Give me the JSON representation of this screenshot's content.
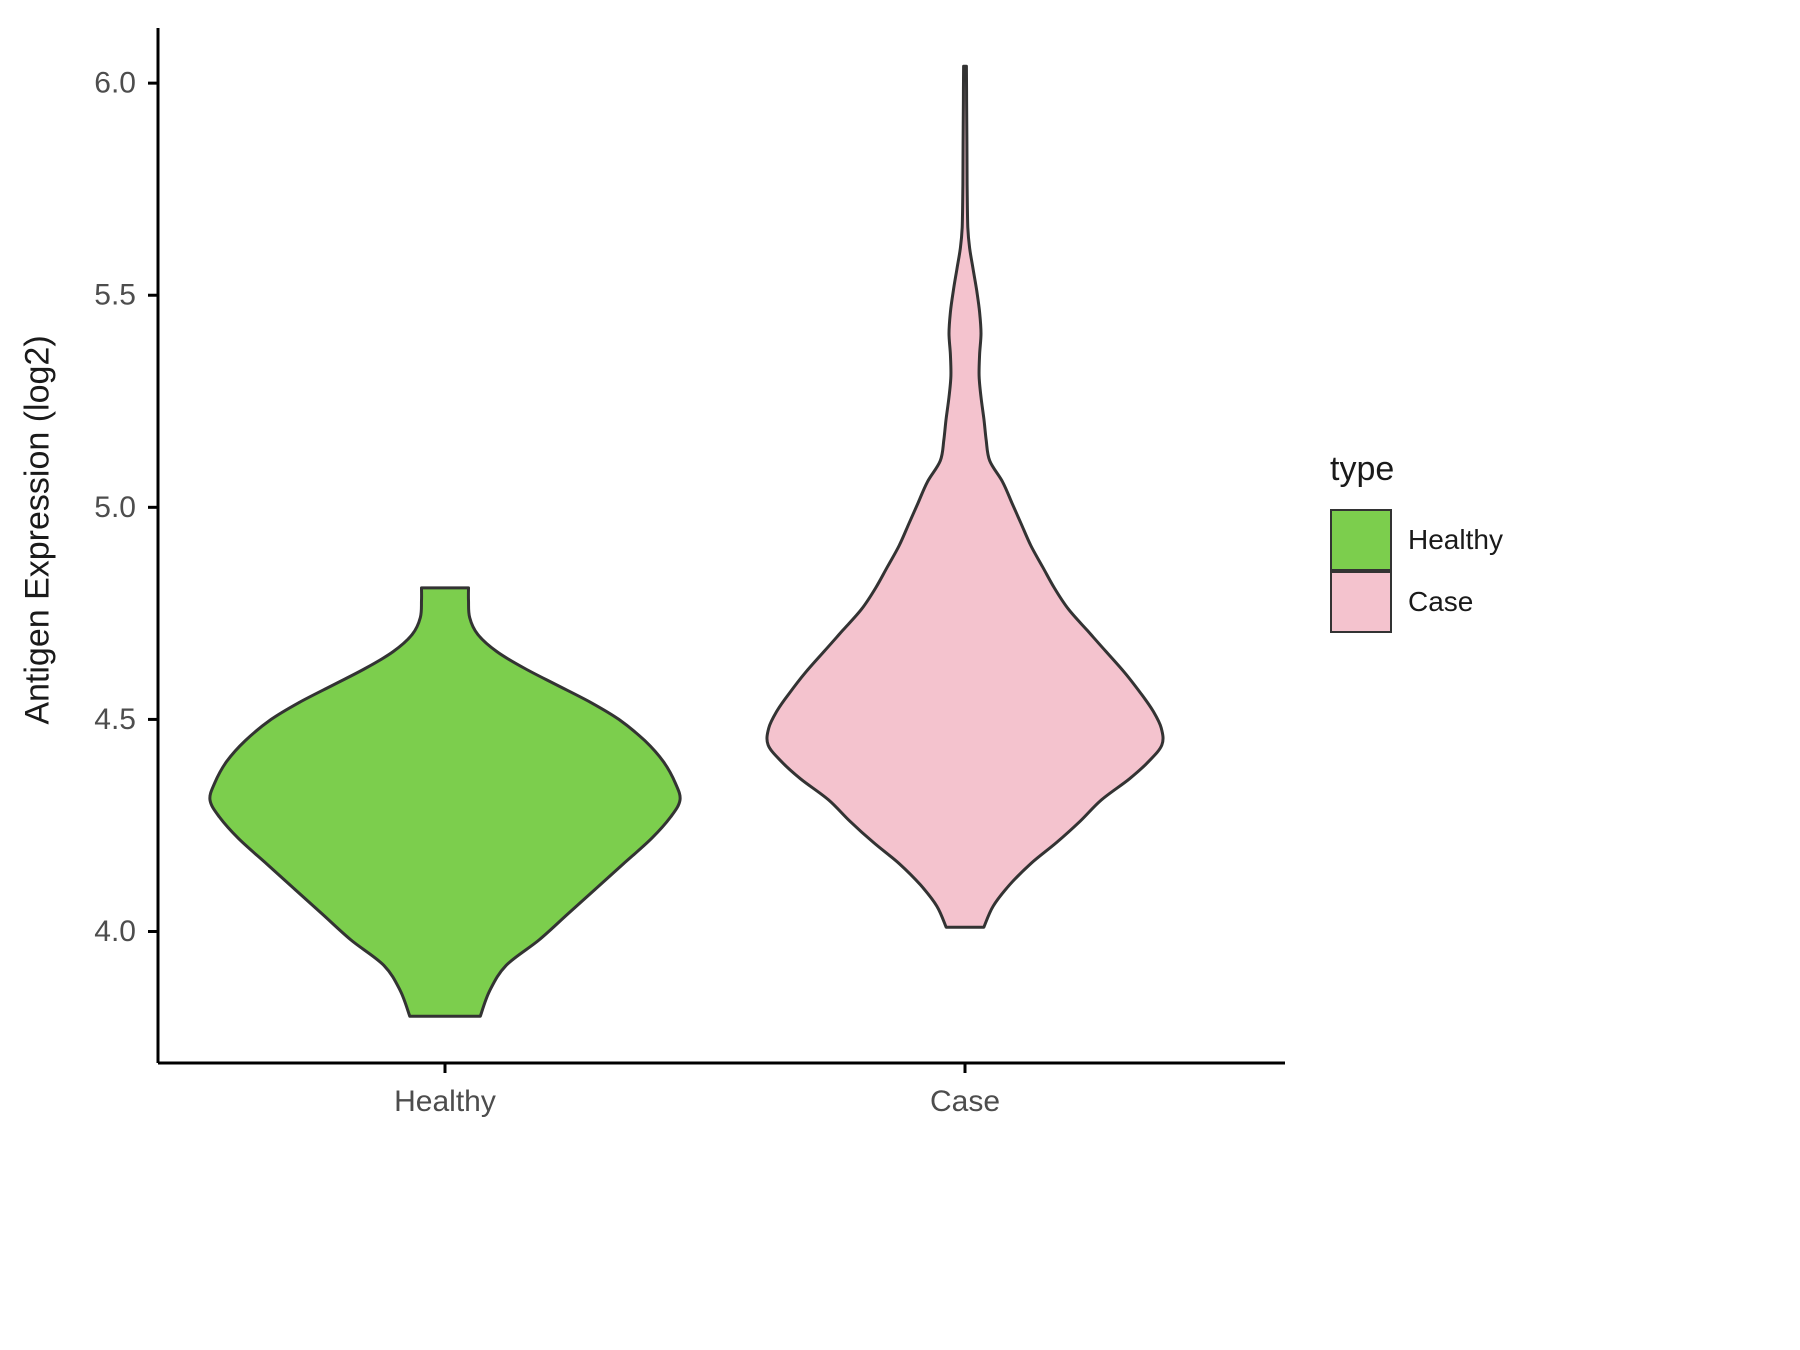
{
  "chart_data": {
    "type": "violin",
    "title": "",
    "xlabel": "",
    "ylabel": "Antigen Expression (log2)",
    "categories": [
      "Healthy",
      "Case"
    ],
    "y_axis": {
      "tick_values": [
        4.0,
        4.5,
        5.0,
        5.5,
        6.0
      ],
      "tick_labels": [
        "4.0",
        "4.5",
        "5.0",
        "5.5",
        "6.0"
      ],
      "range": [
        3.69,
        6.13
      ]
    },
    "legend": {
      "title": "type",
      "position": "right",
      "entries": [
        {
          "label": "Healthy",
          "color": "#7CCE4D"
        },
        {
          "label": "Case",
          "color": "#F4C3CE"
        }
      ]
    },
    "style": {
      "outline_color": "#333333",
      "outline_width": 3,
      "axis_color": "#000000",
      "axis_width": 3,
      "tick_text_color": "#4D4D4D",
      "background": "#FFFFFF"
    },
    "series": [
      {
        "name": "Healthy",
        "color": "#7CCE4D",
        "summary": {
          "min": 3.8,
          "max": 4.81,
          "peak_density_at": 4.31
        },
        "profile": [
          [
            3.8,
            0.15
          ],
          [
            3.86,
            0.19
          ],
          [
            3.92,
            0.26
          ],
          [
            3.98,
            0.4
          ],
          [
            4.04,
            0.52
          ],
          [
            4.1,
            0.64
          ],
          [
            4.16,
            0.76
          ],
          [
            4.22,
            0.88
          ],
          [
            4.27,
            0.96
          ],
          [
            4.31,
            1.0
          ],
          [
            4.35,
            0.98
          ],
          [
            4.4,
            0.93
          ],
          [
            4.45,
            0.85
          ],
          [
            4.5,
            0.74
          ],
          [
            4.54,
            0.62
          ],
          [
            4.58,
            0.48
          ],
          [
            4.62,
            0.34
          ],
          [
            4.66,
            0.22
          ],
          [
            4.7,
            0.14
          ],
          [
            4.74,
            0.105
          ],
          [
            4.78,
            0.1
          ],
          [
            4.81,
            0.1
          ]
        ]
      },
      {
        "name": "Case",
        "color": "#F4C3CE",
        "summary": {
          "min": 4.01,
          "max": 6.04,
          "peak_density_at": 4.44
        },
        "profile": [
          [
            4.01,
            0.08
          ],
          [
            4.06,
            0.12
          ],
          [
            4.11,
            0.19
          ],
          [
            4.16,
            0.28
          ],
          [
            4.21,
            0.39
          ],
          [
            4.26,
            0.49
          ],
          [
            4.31,
            0.58
          ],
          [
            4.36,
            0.7
          ],
          [
            4.4,
            0.78
          ],
          [
            4.44,
            0.838
          ],
          [
            4.48,
            0.835
          ],
          [
            4.52,
            0.8
          ],
          [
            4.56,
            0.75
          ],
          [
            4.61,
            0.68
          ],
          [
            4.66,
            0.6
          ],
          [
            4.71,
            0.52
          ],
          [
            4.76,
            0.44
          ],
          [
            4.81,
            0.38
          ],
          [
            4.86,
            0.33
          ],
          [
            4.91,
            0.28
          ],
          [
            4.96,
            0.24
          ],
          [
            5.01,
            0.2
          ],
          [
            5.06,
            0.16
          ],
          [
            5.11,
            0.105
          ],
          [
            5.16,
            0.09
          ],
          [
            5.21,
            0.08
          ],
          [
            5.26,
            0.068
          ],
          [
            5.31,
            0.06
          ],
          [
            5.36,
            0.062
          ],
          [
            5.41,
            0.068
          ],
          [
            5.46,
            0.062
          ],
          [
            5.51,
            0.05
          ],
          [
            5.56,
            0.035
          ],
          [
            5.61,
            0.02
          ],
          [
            5.66,
            0.012
          ],
          [
            5.76,
            0.009
          ],
          [
            5.86,
            0.008
          ],
          [
            5.96,
            0.007
          ],
          [
            6.04,
            0.006
          ]
        ]
      }
    ]
  }
}
